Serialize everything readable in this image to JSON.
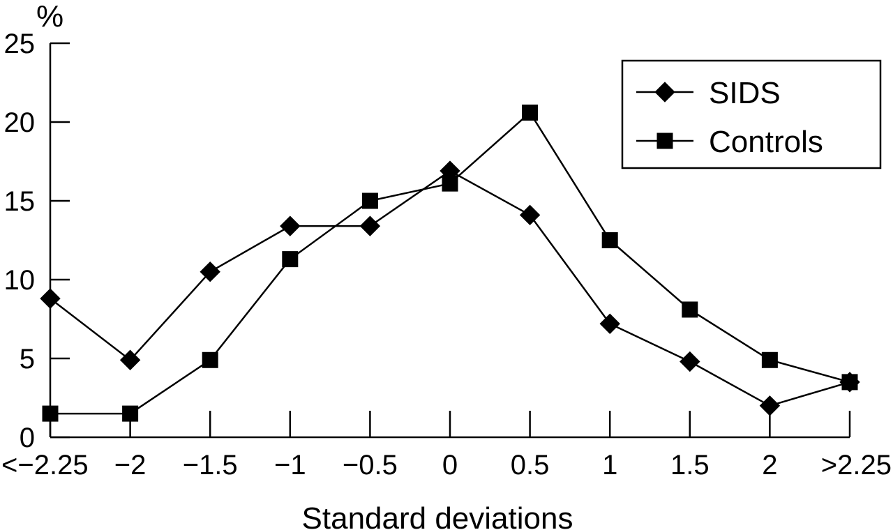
{
  "chart_data": {
    "type": "line",
    "title": "",
    "xlabel": "Standard deviations",
    "ylabel": "%",
    "categories": [
      "<−2.25",
      "−2",
      "−1.5",
      "−1",
      "−0.5",
      "0",
      "0.5",
      "1",
      "1.5",
      "2",
      ">2.25"
    ],
    "yticks": [
      "0",
      "5",
      "10",
      "15",
      "20",
      "25"
    ],
    "ylim": [
      0,
      25
    ],
    "grid": false,
    "legend_position": "top-right",
    "series": [
      {
        "name": "SIDS",
        "marker": "diamond",
        "values": [
          8.8,
          4.9,
          10.5,
          13.4,
          13.4,
          16.9,
          14.1,
          7.2,
          4.8,
          2.0,
          3.5
        ]
      },
      {
        "name": "Controls",
        "marker": "square",
        "values": [
          1.5,
          1.5,
          4.9,
          11.3,
          15.0,
          16.1,
          20.6,
          12.5,
          8.1,
          4.9,
          3.5
        ]
      }
    ]
  }
}
